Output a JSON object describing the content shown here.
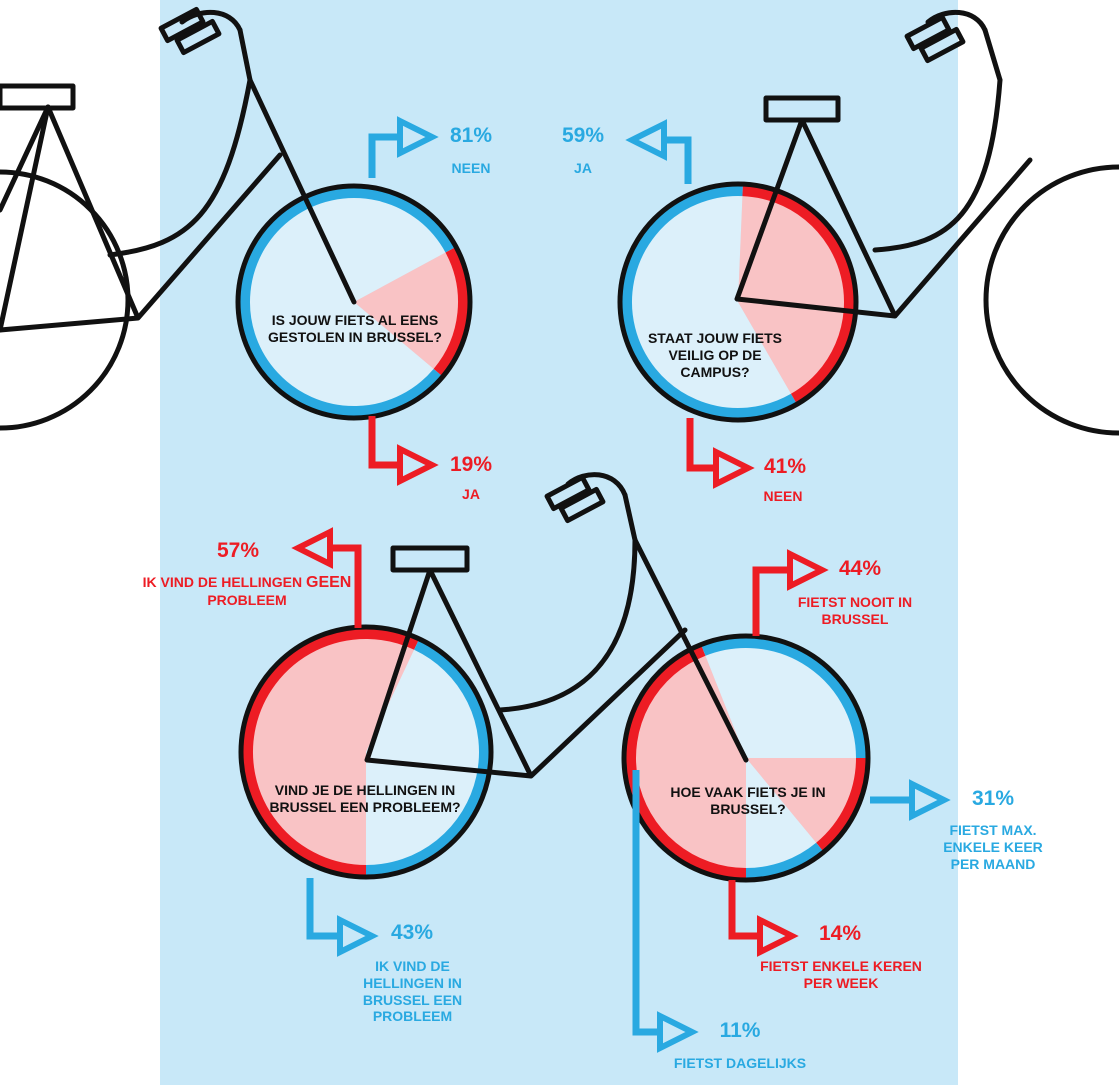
{
  "colors": {
    "panel": "#c8e8f8",
    "blue": "#29a9e1",
    "red": "#ed1c24",
    "red_light": "#f9c3c5",
    "pale": "#dcf0fa",
    "ink": "#111111"
  },
  "chart_data": [
    {
      "type": "pie",
      "question": "IS JOUW FIETS AL EENS GESTOLEN IN BRUSSEL?",
      "slices": [
        {
          "label": "NEEN",
          "value": 81,
          "display": "81%",
          "color": "blue"
        },
        {
          "label": "JA",
          "value": 19,
          "display": "19%",
          "color": "red"
        }
      ]
    },
    {
      "type": "pie",
      "question": "STAAT JOUW FIETS VEILIG OP DE CAMPUS?",
      "slices": [
        {
          "label": "JA",
          "value": 59,
          "display": "59%",
          "color": "blue"
        },
        {
          "label": "NEEN",
          "value": 41,
          "display": "41%",
          "color": "red"
        }
      ]
    },
    {
      "type": "pie",
      "question": "VIND JE DE HELLINGEN IN BRUSSEL EEN PROBLEEM?",
      "slices": [
        {
          "label_parts": [
            "IK VIND DE HELLINGEN ",
            "GEEN",
            " PROBLEEM"
          ],
          "value": 57,
          "display": "57%",
          "color": "red"
        },
        {
          "label": "IK VIND DE HELLINGEN IN BRUSSEL EEN PROBLEEM",
          "value": 43,
          "display": "43%",
          "color": "blue"
        }
      ]
    },
    {
      "type": "pie",
      "question": "HOE VAAK FIETS JE IN BRUSSEL?",
      "slices": [
        {
          "label": "FIETST NOOIT IN BRUSSEL",
          "value": 44,
          "display": "44%",
          "color": "red"
        },
        {
          "label": "FIETST MAX. ENKELE KEER PER MAAND",
          "value": 31,
          "display": "31%",
          "color": "blue"
        },
        {
          "label": "FIETST ENKELE KEREN PER WEEK",
          "value": 14,
          "display": "14%",
          "color": "red"
        },
        {
          "label": "FIETST DAGELIJKS",
          "value": 11,
          "display": "11%",
          "color": "blue"
        }
      ]
    }
  ]
}
